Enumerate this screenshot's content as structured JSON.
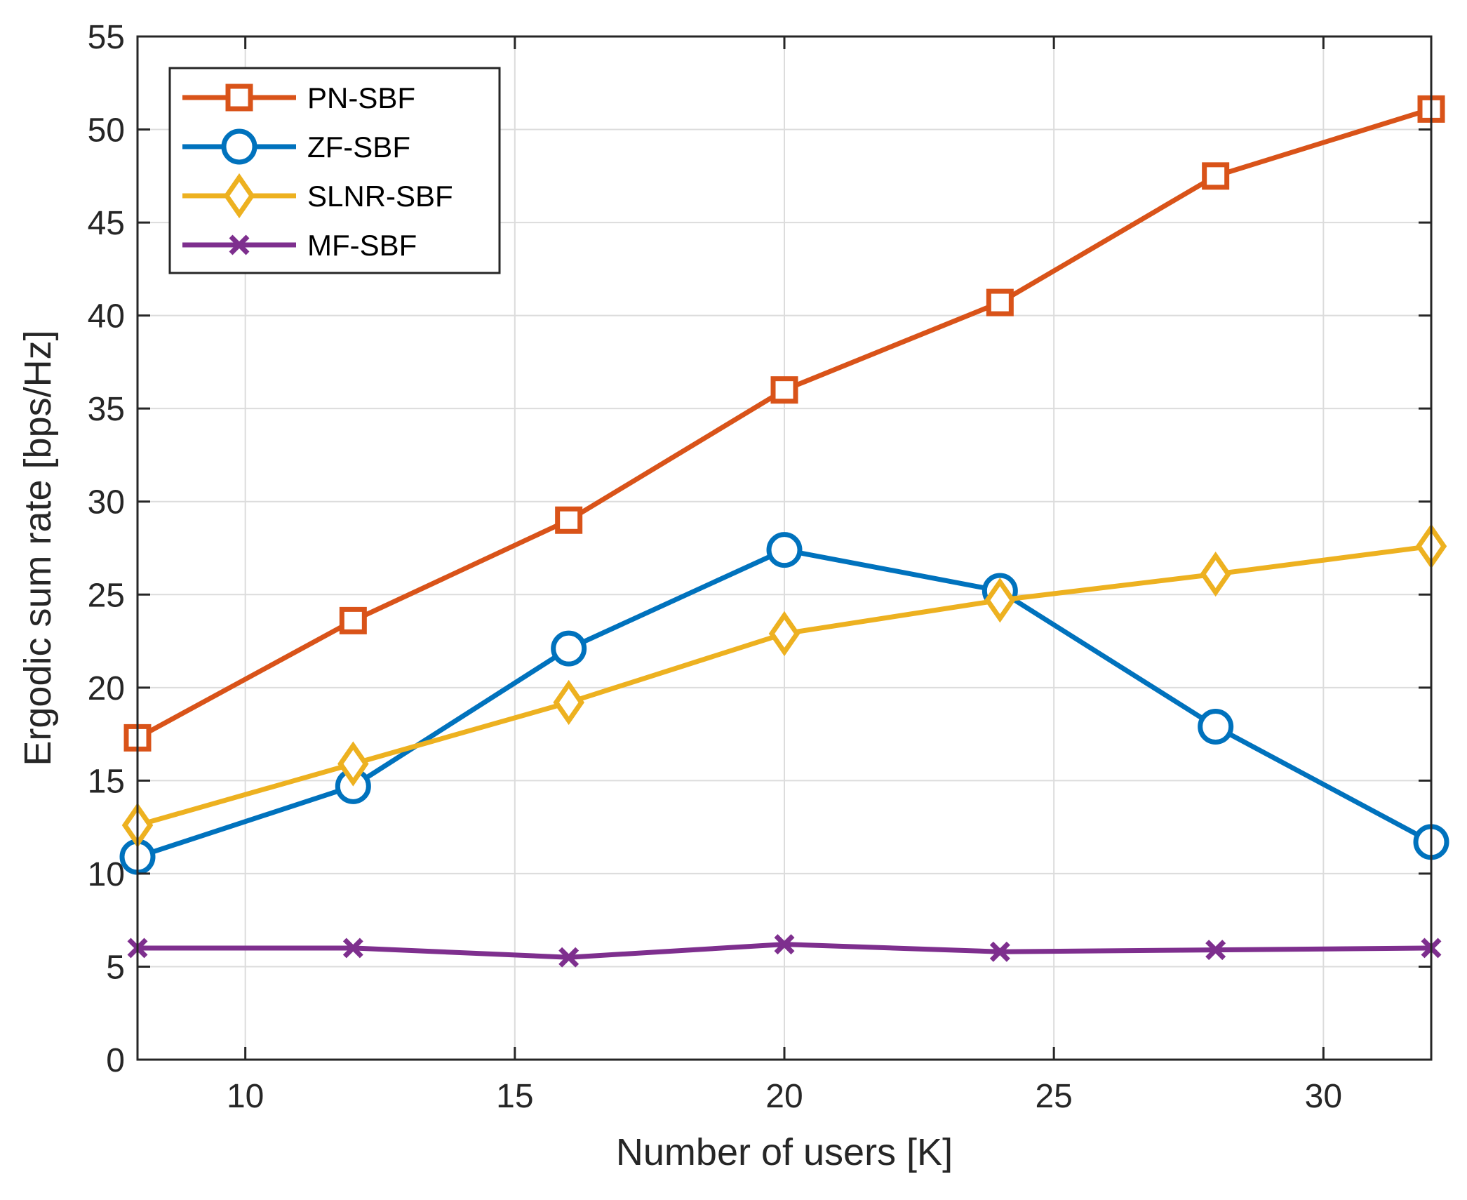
{
  "chart_data": {
    "type": "line",
    "xlabel": "Number of users [K]",
    "ylabel": "Ergodic sum rate [bps/Hz]",
    "xlim": [
      8,
      32
    ],
    "ylim": [
      0,
      55
    ],
    "xticks": [
      10,
      15,
      20,
      25,
      30
    ],
    "yticks": [
      0,
      5,
      10,
      15,
      20,
      25,
      30,
      35,
      40,
      45,
      50,
      55
    ],
    "grid": true,
    "legend_position": "top-left",
    "x": [
      8,
      12,
      16,
      20,
      24,
      28,
      32
    ],
    "series": [
      {
        "name": "PN-SBF",
        "color": "#D95319",
        "marker": "square",
        "values": [
          17.3,
          23.6,
          29.0,
          36.0,
          40.7,
          47.5,
          51.1
        ]
      },
      {
        "name": "ZF-SBF",
        "color": "#0072BD",
        "marker": "circle",
        "values": [
          10.9,
          14.7,
          22.1,
          27.4,
          25.2,
          17.9,
          11.7
        ]
      },
      {
        "name": "SLNR-SBF",
        "color": "#EDB120",
        "marker": "diamond",
        "values": [
          12.6,
          15.9,
          19.2,
          22.9,
          24.7,
          26.1,
          27.6
        ]
      },
      {
        "name": "MF-SBF",
        "color": "#7E2F8E",
        "marker": "x",
        "values": [
          6.0,
          6.0,
          5.5,
          6.2,
          5.8,
          5.9,
          6.0
        ]
      }
    ]
  }
}
